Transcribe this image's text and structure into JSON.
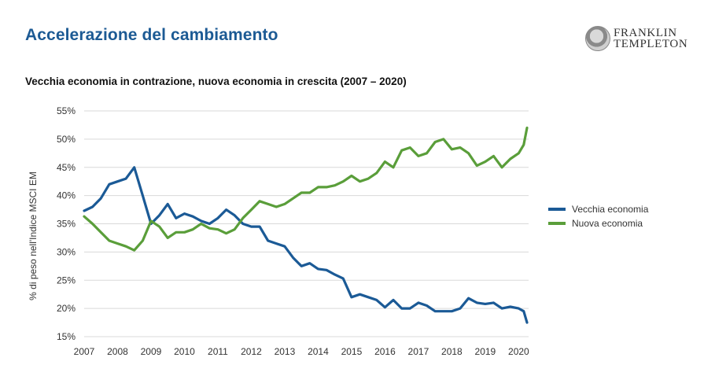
{
  "page": {
    "title": "Accelerazione del cambiamento",
    "logo_line1": "FRANKLIN",
    "logo_line2": "TEMPLETON"
  },
  "chart_data": {
    "type": "line",
    "title": "Vecchia economia in contrazione, nuova economia in crescita (2007 – 2020)",
    "xlabel": "",
    "ylabel": "% di peso nell'Indice MSCI EM",
    "ylim": [
      15,
      55
    ],
    "xlim": [
      2007,
      2020.25
    ],
    "yticks": [
      "15%",
      "20%",
      "25%",
      "30%",
      "35%",
      "40%",
      "45%",
      "50%",
      "55%"
    ],
    "ytick_values": [
      15,
      20,
      25,
      30,
      35,
      40,
      45,
      50,
      55
    ],
    "xticks": [
      "2007",
      "2008",
      "2009",
      "2010",
      "2011",
      "2012",
      "2013",
      "2014",
      "2015",
      "2016",
      "2017",
      "2018",
      "2019",
      "2020"
    ],
    "grid": true,
    "legend_position": "right",
    "x": [
      2007.0,
      2007.25,
      2007.5,
      2007.75,
      2008.0,
      2008.25,
      2008.5,
      2008.75,
      2009.0,
      2009.25,
      2009.5,
      2009.75,
      2010.0,
      2010.25,
      2010.5,
      2010.75,
      2011.0,
      2011.25,
      2011.5,
      2011.75,
      2012.0,
      2012.25,
      2012.5,
      2012.75,
      2013.0,
      2013.25,
      2013.5,
      2013.75,
      2014.0,
      2014.25,
      2014.5,
      2014.75,
      2015.0,
      2015.25,
      2015.5,
      2015.75,
      2016.0,
      2016.25,
      2016.5,
      2016.75,
      2017.0,
      2017.25,
      2017.5,
      2017.75,
      2018.0,
      2018.25,
      2018.5,
      2018.75,
      2019.0,
      2019.25,
      2019.5,
      2019.75,
      2020.0,
      2020.15,
      2020.25
    ],
    "series": [
      {
        "name": "Vecchia economia",
        "color": "#1b5a96",
        "values": [
          37.3,
          38.0,
          39.5,
          42.0,
          42.5,
          43.0,
          45.0,
          40.0,
          35.0,
          36.5,
          38.5,
          36.0,
          36.8,
          36.3,
          35.5,
          35.0,
          36.0,
          37.5,
          36.5,
          35.0,
          34.5,
          34.5,
          32.0,
          31.5,
          31.0,
          29.0,
          27.5,
          28.0,
          27.0,
          26.8,
          26.0,
          25.3,
          22.0,
          22.5,
          22.0,
          21.5,
          20.2,
          21.5,
          20.0,
          20.0,
          21.0,
          20.5,
          19.5,
          19.5,
          19.5,
          20.0,
          21.8,
          21.0,
          20.8,
          21.0,
          20.0,
          20.3,
          20.0,
          19.5,
          17.5
        ]
      },
      {
        "name": "Nuova economia",
        "color": "#5a9e3a",
        "values": [
          36.3,
          35.0,
          33.5,
          32.0,
          31.5,
          31.0,
          30.3,
          32.0,
          35.5,
          34.5,
          32.5,
          33.5,
          33.5,
          34.0,
          35.0,
          34.2,
          34.0,
          33.3,
          34.0,
          36.0,
          37.5,
          39.0,
          38.5,
          38.0,
          38.5,
          39.5,
          40.5,
          40.5,
          41.5,
          41.5,
          41.8,
          42.5,
          43.5,
          42.5,
          43.0,
          44.0,
          46.0,
          45.0,
          48.0,
          48.5,
          47.0,
          47.5,
          49.5,
          50.0,
          48.2,
          48.5,
          47.5,
          45.3,
          46.0,
          47.0,
          45.0,
          46.5,
          47.5,
          49.0,
          52.0
        ]
      }
    ]
  }
}
